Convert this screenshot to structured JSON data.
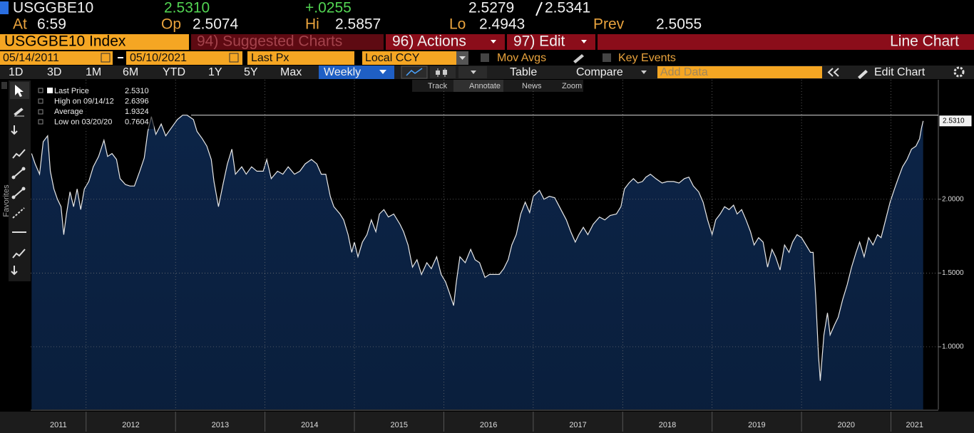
{
  "header": {
    "ticker": "USGGBE10",
    "last": "2.5310",
    "change": "+.0255",
    "bid": "2.5279",
    "ask": "2.5341",
    "time_label": "At",
    "time": "6:59",
    "open_label": "Op",
    "open": "2.5074",
    "high_label": "Hi",
    "high": "2.5857",
    "low_label": "Lo",
    "low": "2.4943",
    "prev_label": "Prev",
    "prev": "2.5055"
  },
  "menu": {
    "security": "USGGBE10 Index",
    "suggested": "94) Suggested Charts",
    "actions": "96) Actions",
    "edit": "97) Edit",
    "chart_name": "Line Chart"
  },
  "controls": {
    "start_date": "05/14/2011",
    "end_date": "05/10/2021",
    "field": "Last Px",
    "currency": "Local CCY",
    "mov_avgs": "Mov Avgs",
    "key_events": "Key Events"
  },
  "toolbar": {
    "ranges": [
      "1D",
      "3D",
      "1M",
      "6M",
      "YTD",
      "1Y",
      "5Y",
      "Max"
    ],
    "frequency": "Weekly",
    "table": "Table",
    "compare": "Compare",
    "add_data": "Add Data",
    "edit_chart": "Edit Chart"
  },
  "chart_tools": [
    "Track",
    "Annotate",
    "News",
    "Zoom"
  ],
  "side_panel": "Favorites",
  "chart_data": {
    "type": "area",
    "color": "#e8e8e8",
    "fill": "#0c2447",
    "grid": true,
    "x": [
      2011.39,
      2011.43,
      2011.48,
      2011.52,
      2011.57,
      2011.6,
      2011.64,
      2011.68,
      2011.72,
      2011.75,
      2011.78,
      2011.82,
      2011.86,
      2011.9,
      2011.94,
      2011.98,
      2012.03,
      2012.08,
      2012.14,
      2012.2,
      2012.24,
      2012.29,
      2012.34,
      2012.38,
      2012.44,
      2012.49,
      2012.54,
      2012.6,
      2012.65,
      2012.69,
      2012.73,
      2012.78,
      2012.84,
      2012.89,
      2012.96,
      2013.02,
      2013.08,
      2013.13,
      2013.2,
      2013.24,
      2013.3,
      2013.35,
      2013.4,
      2013.43,
      2013.48,
      2013.53,
      2013.58,
      2013.63,
      2013.67,
      2013.74,
      2013.79,
      2013.85,
      2013.91,
      2013.98,
      2014.02,
      2014.07,
      2014.14,
      2014.2,
      2014.26,
      2014.33,
      2014.39,
      2014.45,
      2014.52,
      2014.58,
      2014.63,
      2014.68,
      2014.73,
      2014.77,
      2014.84,
      2014.88,
      2014.93,
      2014.97,
      2015.0,
      2015.04,
      2015.09,
      2015.14,
      2015.19,
      2015.24,
      2015.28,
      2015.33,
      2015.38,
      2015.44,
      2015.51,
      2015.55,
      2015.6,
      2015.65,
      2015.7,
      2015.75,
      2015.81,
      2015.86,
      2015.92,
      2015.97,
      2016.02,
      2016.06,
      2016.11,
      2016.14,
      2016.18,
      2016.24,
      2016.3,
      2016.35,
      2016.4,
      2016.46,
      2016.51,
      2016.56,
      2016.62,
      2016.67,
      2016.72,
      2016.76,
      2016.81,
      2016.86,
      2016.91,
      2016.96,
      2017.0,
      2017.07,
      2017.12,
      2017.18,
      2017.24,
      2017.31,
      2017.37,
      2017.42,
      2017.47,
      2017.51,
      2017.56,
      2017.61,
      2017.67,
      2017.74,
      2017.8,
      2017.86,
      2017.93,
      2017.98,
      2018.02,
      2018.07,
      2018.12,
      2018.17,
      2018.22,
      2018.26,
      2018.31,
      2018.37,
      2018.44,
      2018.5,
      2018.57,
      2018.63,
      2018.69,
      2018.74,
      2018.79,
      2018.85,
      2018.9,
      2018.95,
      2019.0,
      2019.04,
      2019.09,
      2019.14,
      2019.19,
      2019.24,
      2019.28,
      2019.33,
      2019.38,
      2019.43,
      2019.47,
      2019.52,
      2019.57,
      2019.62,
      2019.67,
      2019.71,
      2019.76,
      2019.81,
      2019.86,
      2019.9,
      2019.95,
      2020.0,
      2020.05,
      2020.1,
      2020.13,
      2020.16,
      2020.19,
      2020.21,
      2020.25,
      2020.29,
      2020.32,
      2020.37,
      2020.41,
      2020.46,
      2020.51,
      2020.56,
      2020.61,
      2020.65,
      2020.7,
      2020.75,
      2020.8,
      2020.85,
      2020.89,
      2020.94,
      2020.99,
      2021.04,
      2021.08,
      2021.13,
      2021.18,
      2021.23,
      2021.28,
      2021.32,
      2021.34,
      2021.36
    ],
    "values": [
      2.31,
      2.24,
      2.17,
      2.39,
      2.43,
      2.19,
      2.07,
      2.0,
      1.95,
      1.76,
      1.9,
      2.05,
      1.95,
      2.07,
      1.93,
      2.07,
      2.12,
      2.22,
      2.29,
      2.4,
      2.29,
      2.31,
      2.27,
      2.14,
      2.1,
      2.09,
      2.09,
      2.19,
      2.28,
      2.46,
      2.56,
      2.44,
      2.51,
      2.43,
      2.49,
      2.54,
      2.57,
      2.57,
      2.54,
      2.46,
      2.41,
      2.36,
      2.27,
      2.12,
      1.95,
      2.1,
      2.24,
      2.34,
      2.17,
      2.22,
      2.17,
      2.22,
      2.19,
      2.19,
      2.27,
      2.14,
      2.19,
      2.17,
      2.22,
      2.17,
      2.19,
      2.24,
      2.27,
      2.24,
      2.17,
      2.17,
      2.02,
      1.95,
      1.9,
      1.86,
      1.76,
      1.64,
      1.71,
      1.61,
      1.71,
      1.76,
      1.86,
      1.78,
      1.9,
      1.93,
      1.88,
      1.9,
      1.83,
      1.78,
      1.69,
      1.54,
      1.59,
      1.49,
      1.57,
      1.53,
      1.61,
      1.49,
      1.44,
      1.37,
      1.28,
      1.44,
      1.61,
      1.57,
      1.66,
      1.59,
      1.57,
      1.47,
      1.49,
      1.49,
      1.49,
      1.53,
      1.59,
      1.69,
      1.76,
      1.9,
      1.98,
      1.91,
      2.02,
      2.06,
      2.0,
      2.02,
      2.01,
      1.93,
      1.86,
      1.78,
      1.71,
      1.76,
      1.81,
      1.76,
      1.83,
      1.88,
      1.86,
      1.89,
      1.9,
      1.95,
      2.07,
      2.11,
      2.14,
      2.11,
      2.12,
      2.15,
      2.17,
      2.14,
      2.11,
      2.12,
      2.12,
      2.11,
      2.14,
      2.15,
      2.09,
      2.05,
      1.98,
      1.86,
      1.76,
      1.86,
      1.9,
      1.95,
      1.93,
      1.96,
      1.9,
      1.93,
      1.86,
      1.78,
      1.69,
      1.74,
      1.71,
      1.54,
      1.66,
      1.61,
      1.52,
      1.69,
      1.64,
      1.71,
      1.76,
      1.74,
      1.69,
      1.64,
      1.64,
      1.32,
      0.94,
      0.77,
      1.08,
      1.23,
      1.08,
      1.15,
      1.2,
      1.32,
      1.42,
      1.54,
      1.64,
      1.71,
      1.61,
      1.74,
      1.69,
      1.76,
      1.74,
      1.86,
      1.98,
      2.07,
      2.14,
      2.22,
      2.27,
      2.34,
      2.36,
      2.41,
      2.48,
      2.531
    ],
    "xlim": [
      2011.38,
      2021.53
    ],
    "xticks": [
      2012,
      2013,
      2014,
      2015,
      2016,
      2017,
      2018,
      2019,
      2020,
      2021
    ],
    "x_labels": [
      "2011",
      "2012",
      "2013",
      "2014",
      "2015",
      "2016",
      "2017",
      "2018",
      "2019",
      "2020",
      "2021"
    ],
    "ylim": [
      0.575,
      2.81
    ],
    "yticks": [
      {
        "value": 1,
        "label": "1.0000"
      },
      {
        "value": 1.5,
        "label": "1.5000"
      },
      {
        "value": 2,
        "label": "2.0000"
      }
    ],
    "last_price": {
      "value": 2.531,
      "label": "2.5310"
    },
    "legend": {
      "labels": [
        "Last Price",
        "High on 09/14/12",
        "Average",
        "Low on 03/20/20"
      ],
      "values": [
        "2.5310",
        "2.6396",
        "1.9324",
        "0.7604"
      ]
    }
  }
}
